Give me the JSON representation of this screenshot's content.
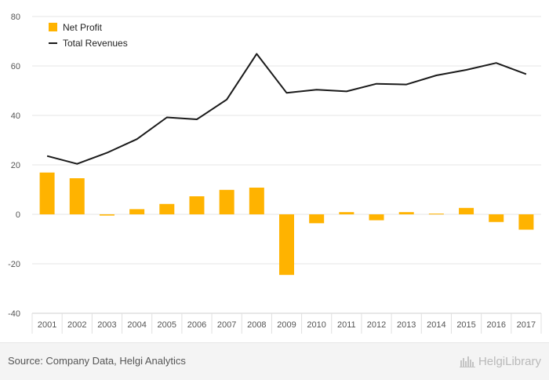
{
  "chart_data": {
    "type": "bar",
    "categories": [
      "2001",
      "2002",
      "2003",
      "2004",
      "2005",
      "2006",
      "2007",
      "2008",
      "2009",
      "2010",
      "2011",
      "2012",
      "2013",
      "2014",
      "2015",
      "2016",
      "2017"
    ],
    "series": [
      {
        "name": "Net Profit",
        "type": "bar",
        "color": "#FFB300",
        "values": [
          16.9,
          14.6,
          -0.5,
          2.1,
          4.2,
          7.3,
          9.9,
          10.8,
          -24.5,
          -3.6,
          0.9,
          -2.4,
          0.9,
          0.3,
          2.6,
          -3.1,
          -6.2
        ]
      },
      {
        "name": "Total Revenues",
        "type": "line",
        "color": "#1a1a1a",
        "values": [
          23.6,
          20.4,
          24.9,
          30.4,
          39.2,
          38.4,
          46.4,
          64.9,
          49.1,
          50.4,
          49.7,
          52.8,
          52.5,
          56.2,
          58.4,
          61.2,
          56.7
        ]
      }
    ],
    "ylim": [
      -40,
      80
    ],
    "yticks": [
      80,
      60,
      40,
      20,
      0,
      -20,
      -40
    ],
    "grid": true,
    "legend": "top-left",
    "title": "",
    "xlabel": "",
    "ylabel": ""
  },
  "footer": {
    "source": "Source: Company Data, Helgi Analytics",
    "brand": "HelgiLibrary"
  }
}
